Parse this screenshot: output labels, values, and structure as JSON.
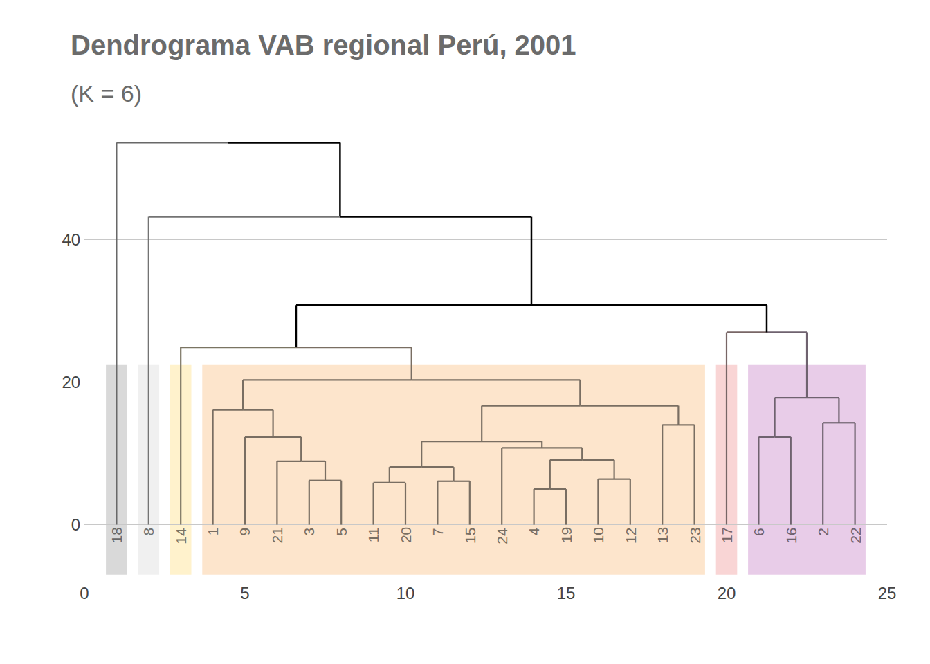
{
  "chart_data": {
    "type": "dendrogram",
    "title": "Dendrograma VAB regional Perú, 2001",
    "subtitle": "(K = 6)",
    "leaves": [
      "18",
      "8",
      "14",
      "1",
      "9",
      "21",
      "3",
      "5",
      "11",
      "20",
      "7",
      "15",
      "24",
      "4",
      "19",
      "10",
      "12",
      "13",
      "23",
      "17",
      "6",
      "16",
      "2",
      "22"
    ],
    "merges": [
      {
        "a": "3",
        "b": "5",
        "height": 6.2
      },
      {
        "a": "21",
        "b": 0,
        "height": 8.9
      },
      {
        "a": "9",
        "b": 1,
        "height": 12.3
      },
      {
        "a": "1",
        "b": 2,
        "height": 16.1
      },
      {
        "a": "11",
        "b": "20",
        "height": 5.9
      },
      {
        "a": "7",
        "b": "15",
        "height": 6.1
      },
      {
        "a": 4,
        "b": 5,
        "height": 8.1
      },
      {
        "a": "4",
        "b": "19",
        "height": 5.0
      },
      {
        "a": "10",
        "b": "12",
        "height": 6.4
      },
      {
        "a": 7,
        "b": 8,
        "height": 9.1
      },
      {
        "a": "24",
        "b": 9,
        "height": 10.8
      },
      {
        "a": 6,
        "b": 10,
        "height": 11.7
      },
      {
        "a": "13",
        "b": "23",
        "height": 14.0
      },
      {
        "a": 11,
        "b": 12,
        "height": 16.7
      },
      {
        "a": 3,
        "b": 13,
        "height": 20.3
      },
      {
        "a": "14",
        "b": 14,
        "height": 24.9
      },
      {
        "a": "6",
        "b": "16",
        "height": 12.3
      },
      {
        "a": "2",
        "b": "22",
        "height": 14.3
      },
      {
        "a": 16,
        "b": 17,
        "height": 17.8
      },
      {
        "a": "17",
        "b": 18,
        "height": 27.0
      },
      {
        "a": 15,
        "b": 19,
        "height": 30.8
      },
      {
        "a": "8",
        "b": 20,
        "height": 43.2
      },
      {
        "a": "18",
        "b": 21,
        "height": 53.6
      }
    ],
    "clusters": [
      {
        "leaves": [
          "18"
        ],
        "color": "#d9d9d9"
      },
      {
        "leaves": [
          "8"
        ],
        "color": "#f0f0f0"
      },
      {
        "leaves": [
          "14"
        ],
        "color": "#fff2cc"
      },
      {
        "leaves": [
          "1",
          "9",
          "21",
          "3",
          "5",
          "11",
          "20",
          "7",
          "15",
          "24",
          "4",
          "19",
          "10",
          "12",
          "13",
          "23"
        ],
        "color": "#fde5cc"
      },
      {
        "leaves": [
          "17"
        ],
        "color": "#f9d5d5"
      },
      {
        "leaves": [
          "6",
          "16",
          "2",
          "22"
        ],
        "color": "#e8cce8"
      }
    ],
    "cluster_band": [
      -7,
      22.5
    ],
    "xlim": [
      0,
      25
    ],
    "xticks": [
      0,
      5,
      10,
      15,
      20,
      25
    ],
    "ylim": [
      -8,
      55
    ],
    "yticks": [
      0,
      20,
      40
    ],
    "grid": true
  }
}
